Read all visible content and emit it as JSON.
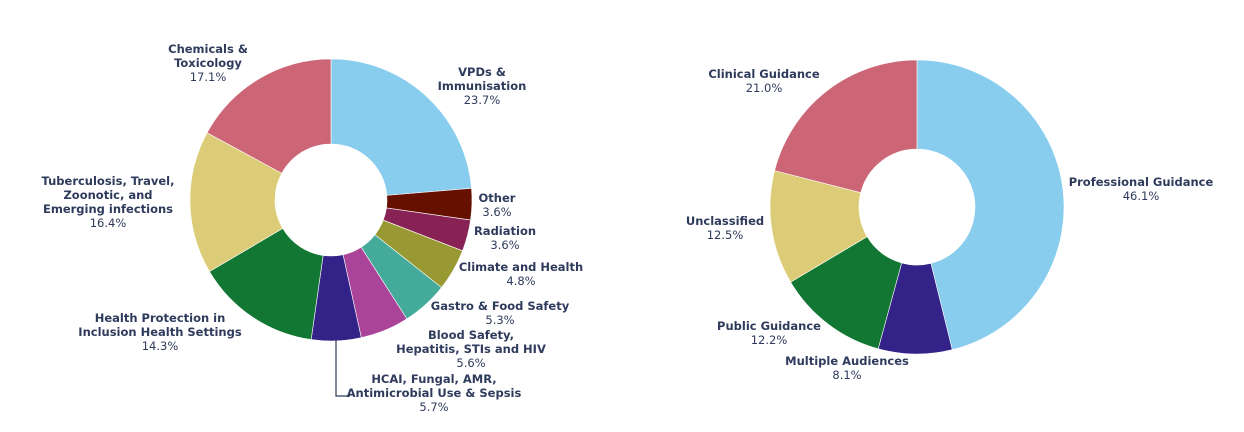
{
  "chart_data": [
    {
      "type": "pie",
      "donut": true,
      "title": "",
      "slices": [
        {
          "name": "VPDs & Immunisation",
          "label_lines": [
            "VPDs &",
            "Immunisation"
          ],
          "value": 23.7,
          "pct_label": "23.7%",
          "color": "#88ccee"
        },
        {
          "name": "Other",
          "label_lines": [
            "Other"
          ],
          "value": 3.6,
          "pct_label": "3.6%",
          "color": "#661100"
        },
        {
          "name": "Radiation",
          "label_lines": [
            "Radiation"
          ],
          "value": 3.6,
          "pct_label": "3.6%",
          "color": "#882255"
        },
        {
          "name": "Climate and Health",
          "label_lines": [
            "Climate and Health"
          ],
          "value": 4.8,
          "pct_label": "4.8%",
          "color": "#999933"
        },
        {
          "name": "Gastro & Food Safety",
          "label_lines": [
            "Gastro & Food Safety"
          ],
          "value": 5.3,
          "pct_label": "5.3%",
          "color": "#44aa99"
        },
        {
          "name": "Blood Safety, Hepatitis, STIs and HIV",
          "label_lines": [
            "Blood Safety,",
            "Hepatitis, STIs and HIV"
          ],
          "value": 5.6,
          "pct_label": "5.6%",
          "color": "#aa4499"
        },
        {
          "name": "HCAI, Fungal, AMR, Antimicrobial Use & Sepsis",
          "label_lines": [
            "HCAI, Fungal, AMR,",
            "Antimicrobial Use & Sepsis"
          ],
          "value": 5.7,
          "pct_label": "5.7%",
          "color": "#332288"
        },
        {
          "name": "Health Protection in Inclusion Health Settings",
          "label_lines": [
            "Health Protection in",
            "Inclusion Health Settings"
          ],
          "value": 14.3,
          "pct_label": "14.3%",
          "color": "#117733"
        },
        {
          "name": "Tuberculosis, Travel, Zoonotic, and Emerging infections",
          "label_lines": [
            "Tuberculosis, Travel,",
            "Zoonotic, and",
            "Emerging infections"
          ],
          "value": 16.4,
          "pct_label": "16.4%",
          "color": "#ddcc77"
        },
        {
          "name": "Chemicals & Toxicology",
          "label_lines": [
            "Chemicals &",
            "Toxicology"
          ],
          "value": 17.1,
          "pct_label": "17.1%",
          "color": "#cc6677"
        }
      ]
    },
    {
      "type": "pie",
      "donut": true,
      "title": "",
      "slices": [
        {
          "name": "Professional Guidance",
          "label_lines": [
            "Professional Guidance"
          ],
          "value": 46.1,
          "pct_label": "46.1%",
          "color": "#88ccee"
        },
        {
          "name": "Multiple Audiences",
          "label_lines": [
            "Multiple Audiences"
          ],
          "value": 8.1,
          "pct_label": "8.1%",
          "color": "#332288"
        },
        {
          "name": "Public Guidance",
          "label_lines": [
            "Public Guidance"
          ],
          "value": 12.2,
          "pct_label": "12.2%",
          "color": "#117733"
        },
        {
          "name": "Unclassified",
          "label_lines": [
            "Unclassified"
          ],
          "value": 12.5,
          "pct_label": "12.5%",
          "color": "#ddcc77"
        },
        {
          "name": "Clinical Guidance",
          "label_lines": [
            "Clinical Guidance"
          ],
          "value": 21.0,
          "pct_label": "21.0%",
          "color": "#cc6677"
        }
      ]
    }
  ]
}
